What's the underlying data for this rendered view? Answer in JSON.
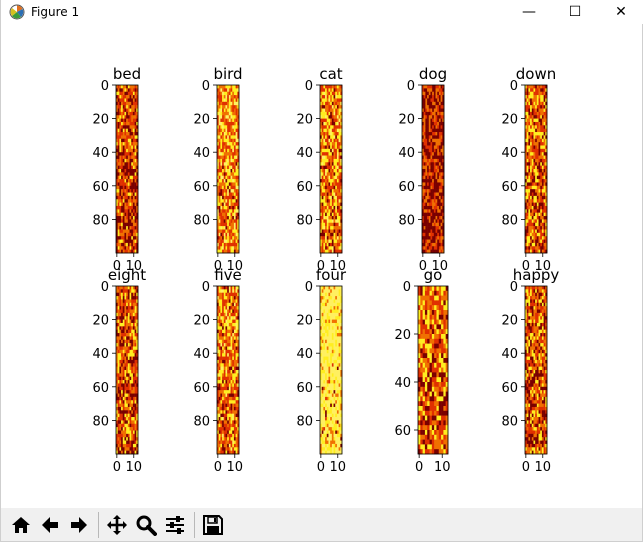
{
  "window": {
    "title": "Figure 1",
    "controls": {
      "minimize": "—",
      "maximize": "☐",
      "close": "✕"
    }
  },
  "toolbar": {
    "buttons": [
      {
        "name": "home-button",
        "icon": "home-icon"
      },
      {
        "name": "back-button",
        "icon": "arrow-left-icon"
      },
      {
        "name": "forward-button",
        "icon": "arrow-right-icon"
      },
      {
        "name": "pan-button",
        "icon": "move-icon"
      },
      {
        "name": "zoom-button",
        "icon": "magnifier-icon"
      },
      {
        "name": "subplots-button",
        "icon": "sliders-icon"
      },
      {
        "name": "save-button",
        "icon": "floppy-disk-icon"
      }
    ]
  },
  "colors": {
    "heat_dark": "#7a0000",
    "heat_mid": "#e03000",
    "heat_orange": "#f07000",
    "heat_yellow": "#ffee20",
    "heat_pale": "#fff060"
  },
  "subplots": [
    {
      "title": "bed",
      "yticks": [
        "0",
        "20",
        "40",
        "60",
        "80"
      ],
      "xticks": [
        "0",
        "10"
      ],
      "ymax": 99,
      "brightness": 0.35
    },
    {
      "title": "bird",
      "yticks": [
        "0",
        "20",
        "40",
        "60",
        "80"
      ],
      "xticks": [
        "0",
        "10"
      ],
      "ymax": 99,
      "brightness": 0.55
    },
    {
      "title": "cat",
      "yticks": [
        "0",
        "20",
        "40",
        "60",
        "80"
      ],
      "xticks": [
        "0",
        "10"
      ],
      "ymax": 99,
      "brightness": 0.5
    },
    {
      "title": "dog",
      "yticks": [
        "0",
        "20",
        "40",
        "60",
        "80"
      ],
      "xticks": [
        "0",
        "10"
      ],
      "ymax": 99,
      "brightness": 0.25
    },
    {
      "title": "down",
      "yticks": [
        "0",
        "20",
        "40",
        "60",
        "80"
      ],
      "xticks": [
        "0",
        "10"
      ],
      "ymax": 99,
      "brightness": 0.45
    },
    {
      "title": "eight",
      "yticks": [
        "0",
        "20",
        "40",
        "60",
        "80"
      ],
      "xticks": [
        "0",
        "10"
      ],
      "ymax": 99,
      "brightness": 0.4
    },
    {
      "title": "five",
      "yticks": [
        "0",
        "20",
        "40",
        "60",
        "80"
      ],
      "xticks": [
        "0",
        "10"
      ],
      "ymax": 99,
      "brightness": 0.5
    },
    {
      "title": "four",
      "yticks": [
        "0",
        "20",
        "40",
        "60",
        "80"
      ],
      "xticks": [
        "0",
        "10"
      ],
      "ymax": 99,
      "brightness": 0.85
    },
    {
      "title": "go",
      "yticks": [
        "0",
        "20",
        "40",
        "60"
      ],
      "xticks": [
        "0",
        "10"
      ],
      "ymax": 69,
      "brightness": 0.45
    },
    {
      "title": "happy",
      "yticks": [
        "0",
        "20",
        "40",
        "60",
        "80"
      ],
      "xticks": [
        "0",
        "10"
      ],
      "ymax": 99,
      "brightness": 0.4
    }
  ]
}
